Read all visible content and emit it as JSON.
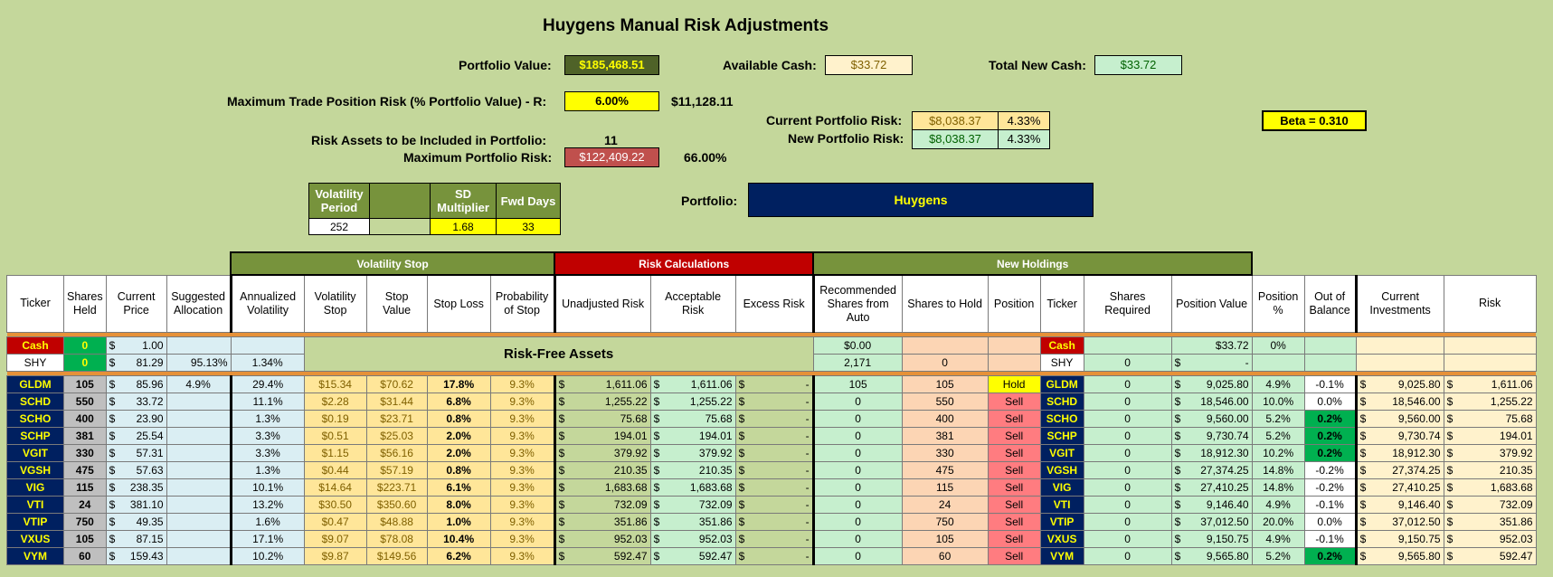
{
  "title": "Huygens Manual Risk Adjustments",
  "top": {
    "portfolio_value_label": "Portfolio Value:",
    "portfolio_value": "$185,468.51",
    "available_cash_label": "Available Cash:",
    "available_cash": "$33.72",
    "total_new_cash_label": "Total New Cash:",
    "total_new_cash": "$33.72",
    "max_trade_label": "Maximum Trade Position Risk (% Portfolio Value) - R:",
    "max_trade_pct": "6.00%",
    "max_trade_amt": "$11,128.11",
    "current_risk_label": "Current Portfolio Risk:",
    "current_risk": "$8,038.37",
    "current_risk_pct": "4.33%",
    "new_risk_label": "New Portfolio Risk:",
    "new_risk": "$8,038.37",
    "new_risk_pct": "4.33%",
    "beta": "Beta = 0.310",
    "risk_assets_label": "Risk Assets to be Included in Portfolio:",
    "risk_assets": "11",
    "max_port_risk_label": "Maximum Portfolio Risk:",
    "max_port_risk": "$122,409.22",
    "max_port_risk_pct": "66.00%",
    "vol_period_label": "Volatility Period",
    "vol_period": "252",
    "sd_mult_label": "SD Multiplier",
    "sd_mult": "1.68",
    "fwd_days_label": "Fwd Days",
    "fwd_days": "33",
    "portfolio_label": "Portfolio:",
    "portfolio_name": "Huygens"
  },
  "groups": {
    "vol_stop": "Volatility Stop",
    "risk_calc": "Risk Calculations",
    "new_holdings": "New Holdings"
  },
  "headers": [
    "Ticker",
    "Shares Held",
    "Current Price",
    "Suggested Allocation",
    "Annualized Volatility",
    "Volatility Stop",
    "Stop Value",
    "Stop Loss",
    "Probability of Stop",
    "Unadjusted Risk",
    "Acceptable Risk",
    "Excess Risk",
    "Recommended Shares from Auto",
    "Shares to Hold",
    "Position",
    "Ticker",
    "Shares Required",
    "Position Value",
    "Position %",
    "Out of Balance",
    "Current Investments",
    "Risk"
  ],
  "cash": {
    "ticker": "Cash",
    "shares": "0",
    "price": "1.00",
    "rec_value": "$0.00",
    "ticker2": "Cash",
    "pos_value": "$33.72",
    "pos_pct": "0%"
  },
  "shy": {
    "ticker": "SHY",
    "shares": "0",
    "price": "81.29",
    "alloc": "95.13%",
    "vol": "1.34%",
    "rec": "2,171",
    "hold": "0",
    "ticker2": "SHY",
    "req": "0",
    "pos_value": "-"
  },
  "risk_free_label": "Risk-Free Assets",
  "rows": [
    {
      "t": "GLDM",
      "sh": "105",
      "p": "85.96",
      "alloc": "4.9%",
      "av": "29.4%",
      "vs": "$15.34",
      "sv": "$70.62",
      "sl": "17.8%",
      "ps": "9.3%",
      "ur": "1,611.06",
      "ar": "1,611.06",
      "er": "-",
      "rec": "105",
      "hold": "105",
      "pos": "Hold",
      "req": "0",
      "pv": "9,025.80",
      "pp": "4.9%",
      "ob": "-0.1%",
      "ci": "9,025.80",
      "r": "1,611.06"
    },
    {
      "t": "SCHD",
      "sh": "550",
      "p": "33.72",
      "alloc": "",
      "av": "11.1%",
      "vs": "$2.28",
      "sv": "$31.44",
      "sl": "6.8%",
      "ps": "9.3%",
      "ur": "1,255.22",
      "ar": "1,255.22",
      "er": "-",
      "rec": "0",
      "hold": "550",
      "pos": "Sell",
      "req": "0",
      "pv": "18,546.00",
      "pp": "10.0%",
      "ob": "0.0%",
      "ci": "18,546.00",
      "r": "1,255.22"
    },
    {
      "t": "SCHO",
      "sh": "400",
      "p": "23.90",
      "alloc": "",
      "av": "1.3%",
      "vs": "$0.19",
      "sv": "$23.71",
      "sl": "0.8%",
      "ps": "9.3%",
      "ur": "75.68",
      "ar": "75.68",
      "er": "-",
      "rec": "0",
      "hold": "400",
      "pos": "Sell",
      "req": "0",
      "pv": "9,560.00",
      "pp": "5.2%",
      "ob": "0.2%",
      "ci": "9,560.00",
      "r": "75.68"
    },
    {
      "t": "SCHP",
      "sh": "381",
      "p": "25.54",
      "alloc": "",
      "av": "3.3%",
      "vs": "$0.51",
      "sv": "$25.03",
      "sl": "2.0%",
      "ps": "9.3%",
      "ur": "194.01",
      "ar": "194.01",
      "er": "-",
      "rec": "0",
      "hold": "381",
      "pos": "Sell",
      "req": "0",
      "pv": "9,730.74",
      "pp": "5.2%",
      "ob": "0.2%",
      "ci": "9,730.74",
      "r": "194.01"
    },
    {
      "t": "VGIT",
      "sh": "330",
      "p": "57.31",
      "alloc": "",
      "av": "3.3%",
      "vs": "$1.15",
      "sv": "$56.16",
      "sl": "2.0%",
      "ps": "9.3%",
      "ur": "379.92",
      "ar": "379.92",
      "er": "-",
      "rec": "0",
      "hold": "330",
      "pos": "Sell",
      "req": "0",
      "pv": "18,912.30",
      "pp": "10.2%",
      "ob": "0.2%",
      "ci": "18,912.30",
      "r": "379.92"
    },
    {
      "t": "VGSH",
      "sh": "475",
      "p": "57.63",
      "alloc": "",
      "av": "1.3%",
      "vs": "$0.44",
      "sv": "$57.19",
      "sl": "0.8%",
      "ps": "9.3%",
      "ur": "210.35",
      "ar": "210.35",
      "er": "-",
      "rec": "0",
      "hold": "475",
      "pos": "Sell",
      "req": "0",
      "pv": "27,374.25",
      "pp": "14.8%",
      "ob": "-0.2%",
      "ci": "27,374.25",
      "r": "210.35"
    },
    {
      "t": "VIG",
      "sh": "115",
      "p": "238.35",
      "alloc": "",
      "av": "10.1%",
      "vs": "$14.64",
      "sv": "$223.71",
      "sl": "6.1%",
      "ps": "9.3%",
      "ur": "1,683.68",
      "ar": "1,683.68",
      "er": "-",
      "rec": "0",
      "hold": "115",
      "pos": "Sell",
      "req": "0",
      "pv": "27,410.25",
      "pp": "14.8%",
      "ob": "-0.2%",
      "ci": "27,410.25",
      "r": "1,683.68"
    },
    {
      "t": "VTI",
      "sh": "24",
      "p": "381.10",
      "alloc": "",
      "av": "13.2%",
      "vs": "$30.50",
      "sv": "$350.60",
      "sl": "8.0%",
      "ps": "9.3%",
      "ur": "732.09",
      "ar": "732.09",
      "er": "-",
      "rec": "0",
      "hold": "24",
      "pos": "Sell",
      "req": "0",
      "pv": "9,146.40",
      "pp": "4.9%",
      "ob": "-0.1%",
      "ci": "9,146.40",
      "r": "732.09"
    },
    {
      "t": "VTIP",
      "sh": "750",
      "p": "49.35",
      "alloc": "",
      "av": "1.6%",
      "vs": "$0.47",
      "sv": "$48.88",
      "sl": "1.0%",
      "ps": "9.3%",
      "ur": "351.86",
      "ar": "351.86",
      "er": "-",
      "rec": "0",
      "hold": "750",
      "pos": "Sell",
      "req": "0",
      "pv": "37,012.50",
      "pp": "20.0%",
      "ob": "0.0%",
      "ci": "37,012.50",
      "r": "351.86"
    },
    {
      "t": "VXUS",
      "sh": "105",
      "p": "87.15",
      "alloc": "",
      "av": "17.1%",
      "vs": "$9.07",
      "sv": "$78.08",
      "sl": "10.4%",
      "ps": "9.3%",
      "ur": "952.03",
      "ar": "952.03",
      "er": "-",
      "rec": "0",
      "hold": "105",
      "pos": "Sell",
      "req": "0",
      "pv": "9,150.75",
      "pp": "4.9%",
      "ob": "-0.1%",
      "ci": "9,150.75",
      "r": "952.03"
    },
    {
      "t": "VYM",
      "sh": "60",
      "p": "159.43",
      "alloc": "",
      "av": "10.2%",
      "vs": "$9.87",
      "sv": "$149.56",
      "sl": "6.2%",
      "ps": "9.3%",
      "ur": "592.47",
      "ar": "592.47",
      "er": "-",
      "rec": "0",
      "hold": "60",
      "pos": "Sell",
      "req": "0",
      "pv": "9,565.80",
      "pp": "5.2%",
      "ob": "0.2%",
      "ci": "9,565.80",
      "r": "592.47"
    }
  ],
  "currency_symbol": "$"
}
